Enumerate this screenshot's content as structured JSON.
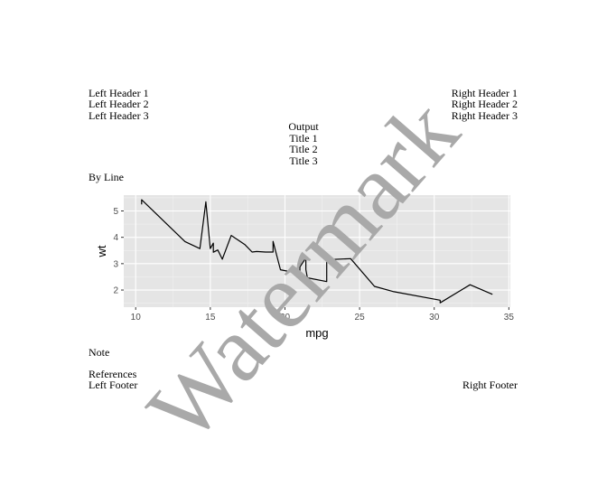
{
  "headers": {
    "left": [
      "Left Header 1",
      "Left Header 2",
      "Left Header 3"
    ],
    "right": [
      "Right Header 1",
      "Right Header 2",
      "Right Header 3"
    ]
  },
  "titles": [
    "Output",
    "Title 1",
    "Title 2",
    "Title 3"
  ],
  "by_line": "By Line",
  "note": "Note",
  "references": "References",
  "footers": {
    "left": "Left Footer",
    "right": "Right Footer"
  },
  "watermark": "Watermark",
  "colors": {
    "panel": "#e5e5e5",
    "grid_major": "#ffffff",
    "line": "#000000",
    "watermark": "#a9a9a9",
    "tick_text": "#4d4d4d"
  },
  "chart_data": {
    "type": "line",
    "xlabel": "mpg",
    "ylabel": "wt",
    "xlim": [
      9.2,
      35.1
    ],
    "ylim": [
      1.35,
      5.6
    ],
    "x_ticks": [
      10,
      15,
      20,
      25,
      30,
      35
    ],
    "y_ticks": [
      2,
      3,
      4,
      5
    ],
    "grid": true,
    "x": [
      10.4,
      10.4,
      13.3,
      14.3,
      14.7,
      15.0,
      15.2,
      15.2,
      15.5,
      15.8,
      16.4,
      17.3,
      17.8,
      18.1,
      18.7,
      19.2,
      19.2,
      19.7,
      21.0,
      21.0,
      21.4,
      21.4,
      21.5,
      22.8,
      22.8,
      24.4,
      26.0,
      27.3,
      30.4,
      30.4,
      32.4,
      33.9
    ],
    "y": [
      5.25,
      5.424,
      3.84,
      3.57,
      5.345,
      3.57,
      3.78,
      3.435,
      3.52,
      3.17,
      4.07,
      3.73,
      3.44,
      3.46,
      3.44,
      3.44,
      3.845,
      2.77,
      2.62,
      2.875,
      3.215,
      2.78,
      2.465,
      2.32,
      3.15,
      3.19,
      2.14,
      1.935,
      1.615,
      1.513,
      2.2,
      1.835
    ]
  }
}
